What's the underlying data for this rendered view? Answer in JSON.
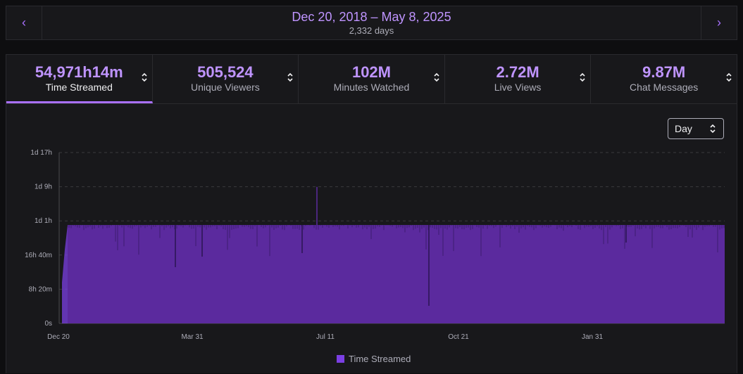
{
  "date_range": {
    "title": "Dec 20, 2018 – May 8, 2025",
    "subtitle": "2,332 days",
    "prev_icon": "chevron-left-icon",
    "next_icon": "chevron-right-icon"
  },
  "tabs": [
    {
      "value": "54,971h14m",
      "label": "Time Streamed",
      "active": true
    },
    {
      "value": "505,524",
      "label": "Unique Viewers",
      "active": false
    },
    {
      "value": "102M",
      "label": "Minutes Watched",
      "active": false
    },
    {
      "value": "2.72M",
      "label": "Live Views",
      "active": false
    },
    {
      "value": "9.87M",
      "label": "Chat Messages",
      "active": false
    }
  ],
  "granularity_select": {
    "value": "Day"
  },
  "colors": {
    "accent": "#a970ff",
    "bar": "#5b2a9e",
    "bar_dark": "#3d1c70",
    "background": "#18181b"
  },
  "chart_data": {
    "type": "bar",
    "y_ticks": [
      "0s",
      "8h 20m",
      "16h 40m",
      "1d 1h",
      "1d 9h",
      "1d 17h"
    ],
    "y_tick_hours": [
      0,
      8.333,
      16.667,
      25,
      33.333,
      41.667
    ],
    "ylim_hours": [
      0,
      41.667
    ],
    "x_ticks": [
      "Dec 20",
      "Mar 31",
      "Jul 11",
      "Oct 21",
      "Jan 31"
    ],
    "typical_daily_value_hours": 24,
    "peak_daily_value_hours": 33.3,
    "legend": [
      {
        "name": "Time Streamed",
        "color": "#7b3fe4"
      }
    ],
    "legend_position": "bottom",
    "grid": true
  }
}
